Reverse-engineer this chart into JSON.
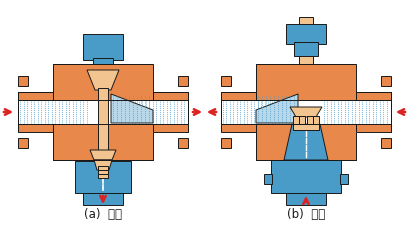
{
  "bg_color": "#ffffff",
  "orange": "#E8884A",
  "blue": "#4A9CC8",
  "light_orange": "#F2C490",
  "light_blue": "#B8D8EA",
  "red": "#DD2222",
  "black": "#1A1A1A",
  "white": "#ffffff",
  "label_a": "(a)  分流",
  "label_b": "(b)  合流",
  "fig_width": 4.08,
  "fig_height": 2.26,
  "dpi": 100
}
